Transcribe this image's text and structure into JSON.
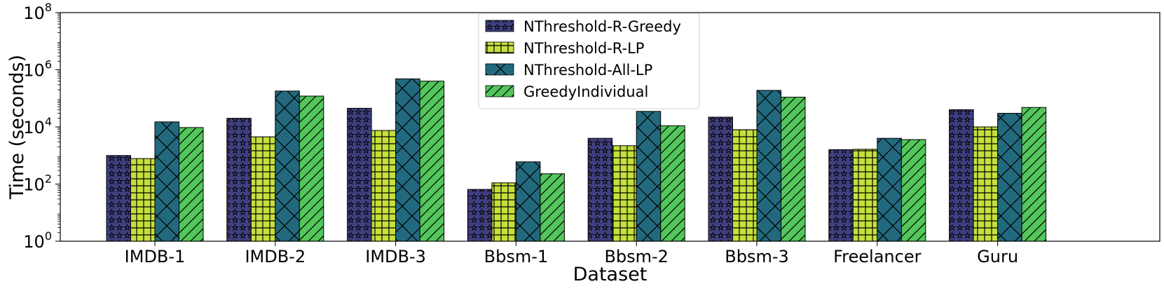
{
  "chart_data": {
    "type": "bar",
    "scale": "log",
    "title": "",
    "xlabel": "Dataset",
    "ylabel": "Time (seconds)",
    "ylim": [
      1,
      100000000
    ],
    "yticks": [
      {
        "base": "10",
        "exp": "0",
        "value": 1
      },
      {
        "base": "10",
        "exp": "2",
        "value": 100
      },
      {
        "base": "10",
        "exp": "4",
        "value": 10000
      },
      {
        "base": "10",
        "exp": "6",
        "value": 1000000
      },
      {
        "base": "10",
        "exp": "8",
        "value": 100000000
      }
    ],
    "categories": [
      "IMDB-1",
      "IMDB-2",
      "IMDB-3",
      "Bbsm-1",
      "Bbsm-2",
      "Bbsm-3",
      "Freelancer",
      "Guru"
    ],
    "legend_position": "top-center",
    "series": [
      {
        "name": "NThreshold-R-Greedy",
        "color": "#3f3f7f",
        "pattern": "stars",
        "values": [
          1000,
          20000,
          45000,
          65,
          4000,
          22000,
          1600,
          40000
        ]
      },
      {
        "name": "NThreshold-R-LP",
        "color": "#c5e03c",
        "pattern": "grid",
        "values": [
          780,
          4500,
          7500,
          110,
          2200,
          8000,
          1650,
          10000
        ]
      },
      {
        "name": "NThreshold-All-LP",
        "color": "#23697d",
        "pattern": "crosshatch",
        "values": [
          15000,
          180000,
          480000,
          600,
          35000,
          190000,
          4000,
          30000
        ]
      },
      {
        "name": "GreedyIndividual",
        "color": "#52c65a",
        "pattern": "diagonal",
        "values": [
          9500,
          120000,
          400000,
          230,
          11000,
          110000,
          3600,
          48000
        ]
      }
    ]
  }
}
